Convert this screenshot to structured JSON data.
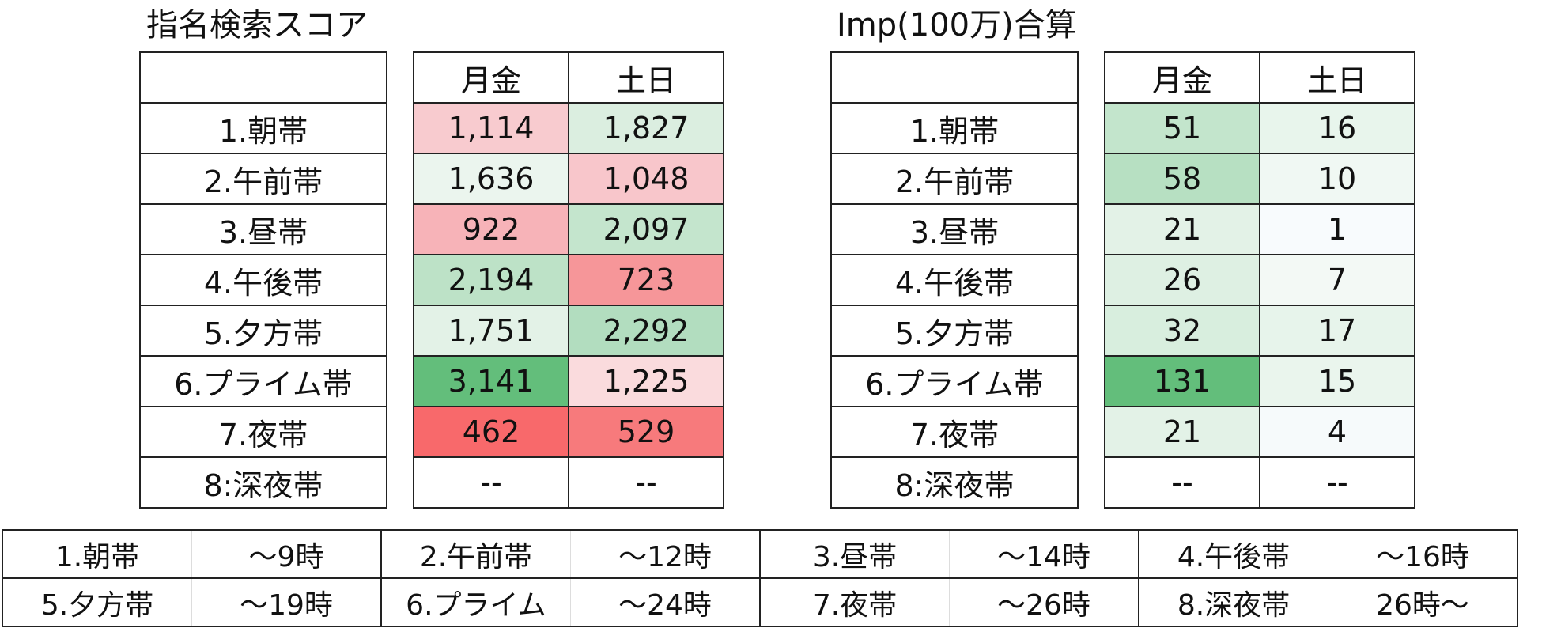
{
  "left_panel": {
    "title": "指名検索スコア",
    "header": [
      "",
      "月金",
      "土日"
    ],
    "rows": [
      {
        "label": "1.朝帯",
        "weekday": "1,114",
        "weekend": "1,827",
        "weekday_color": "#f8cbcf",
        "weekend_color": "#dbeee0"
      },
      {
        "label": "2.午前帯",
        "weekday": "1,636",
        "weekend": "1,048",
        "weekday_color": "#ebf5ee",
        "weekend_color": "#f8c6cb"
      },
      {
        "label": "3.昼帯",
        "weekday": "922",
        "weekend": "2,097",
        "weekday_color": "#f7b3b8",
        "weekend_color": "#c4e5cd"
      },
      {
        "label": "4.午後帯",
        "weekday": "2,194",
        "weekend": "723",
        "weekday_color": "#bde2c7",
        "weekend_color": "#f69699"
      },
      {
        "label": "5.夕方帯",
        "weekday": "1,751",
        "weekend": "2,292",
        "weekday_color": "#e3f2e7",
        "weekend_color": "#b2ddbf"
      },
      {
        "label": "6.プライム帯",
        "weekday": "3,141",
        "weekend": "1,225",
        "weekday_color": "#63be7b",
        "weekend_color": "#fadbdd"
      },
      {
        "label": "7.夜帯",
        "weekday": "462",
        "weekend": "529",
        "weekday_color": "#f8696b",
        "weekend_color": "#f77a7c"
      },
      {
        "label": "8:深夜帯",
        "weekday": "--",
        "weekend": "--",
        "weekday_color": "#ffffff",
        "weekend_color": "#ffffff"
      }
    ]
  },
  "right_panel": {
    "title": "Imp(100万)合算",
    "header": [
      "",
      "月金",
      "土日"
    ],
    "rows": [
      {
        "label": "1.朝帯",
        "weekday": "51",
        "weekend": "16",
        "weekday_color": "#c3e5cc",
        "weekend_color": "#e8f5ec"
      },
      {
        "label": "2.午前帯",
        "weekday": "58",
        "weekend": "10",
        "weekday_color": "#b7e0c2",
        "weekend_color": "#f0f8f3"
      },
      {
        "label": "3.昼帯",
        "weekday": "21",
        "weekend": "1",
        "weekday_color": "#e3f2e7",
        "weekend_color": "#f8fbfd"
      },
      {
        "label": "4.午後帯",
        "weekday": "26",
        "weekend": "7",
        "weekday_color": "#def0e3",
        "weekend_color": "#f3f9f5"
      },
      {
        "label": "5.夕方帯",
        "weekday": "32",
        "weekend": "17",
        "weekday_color": "#d8eede",
        "weekend_color": "#e7f4eb"
      },
      {
        "label": "6.プライム帯",
        "weekday": "131",
        "weekend": "15",
        "weekday_color": "#63be7b",
        "weekend_color": "#eaf5ed"
      },
      {
        "label": "7.夜帯",
        "weekday": "21",
        "weekend": "4",
        "weekday_color": "#e3f2e7",
        "weekend_color": "#f6fafb"
      },
      {
        "label": "8:深夜帯",
        "weekday": "--",
        "weekend": "--",
        "weekday_color": "#ffffff",
        "weekend_color": "#ffffff"
      }
    ]
  },
  "legend": {
    "row1": [
      "1.朝帯",
      "～9時",
      "2.午前帯",
      "～12時",
      "3.昼帯",
      "～14時",
      "4.午後帯",
      "～16時"
    ],
    "row2": [
      "5.夕方帯",
      "～19時",
      "6.プライム",
      "～24時",
      "7.夜帯",
      "～26時",
      "8.深夜帯",
      "26時～"
    ]
  }
}
